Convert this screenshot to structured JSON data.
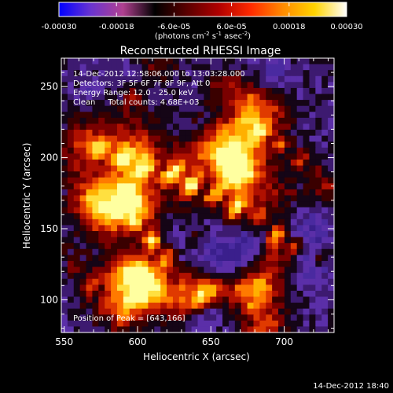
{
  "colorbar": {
    "ticks": [
      "-0.00030",
      "-0.00018",
      "-6.0e-05",
      "6.0e-05",
      "0.00018",
      "0.00030"
    ],
    "tick_values": [
      -0.0003,
      -0.00018,
      -6e-05,
      6e-05,
      0.00018,
      0.0003
    ],
    "range": [
      -0.0003,
      0.0003
    ],
    "units_prefix": "(photons cm",
    "units_exp1": "-2",
    "units_mid": " s",
    "units_exp2": "-1",
    "units_mid2": " asec",
    "units_exp3": "-2",
    "units_suffix": ")",
    "colors": [
      "#0000ff",
      "#6a34d0",
      "#b04090",
      "#000000",
      "#5a0000",
      "#b00000",
      "#ff2a00",
      "#ff8a00",
      "#ffd400",
      "#ffffff"
    ]
  },
  "plot": {
    "title": "Reconstructed RHESSI Image",
    "xlabel": "Heliocentric X (arcsec)",
    "ylabel": "Heliocentric Y (arcsec)",
    "xticks": [
      "550",
      "600",
      "650",
      "700"
    ],
    "xtick_values": [
      550,
      600,
      650,
      700
    ],
    "yticks": [
      "100",
      "150",
      "200",
      "250"
    ],
    "ytick_values": [
      100,
      150,
      200,
      250
    ],
    "xlim": [
      548,
      734
    ],
    "ylim": [
      77,
      270
    ],
    "info_lines": [
      "14-Dec-2012 12:58:06.000 to 13:03:28.000",
      "Detectors: 3F 5F 6F 7F 8F 9F, Att 0",
      "Energy Range: 12.0 - 25.0 keV",
      "Clean     Total counts: 4.68E+03"
    ],
    "peak_label": "Position of Peak = [643,166]",
    "peak": [
      643,
      166
    ],
    "image_size": [
      44,
      46
    ],
    "palette": [
      "#3a1f8c",
      "#4a2aa0",
      "#5b2fa8",
      "#3d1a70",
      "#150516",
      "#3a0000",
      "#7a0000",
      "#b01000",
      "#e03a00",
      "#ff7a00",
      "#ffb000",
      "#ffe040",
      "#ffffa0"
    ]
  },
  "footer": {
    "timestamp": "14-Dec-2012 18:40"
  }
}
